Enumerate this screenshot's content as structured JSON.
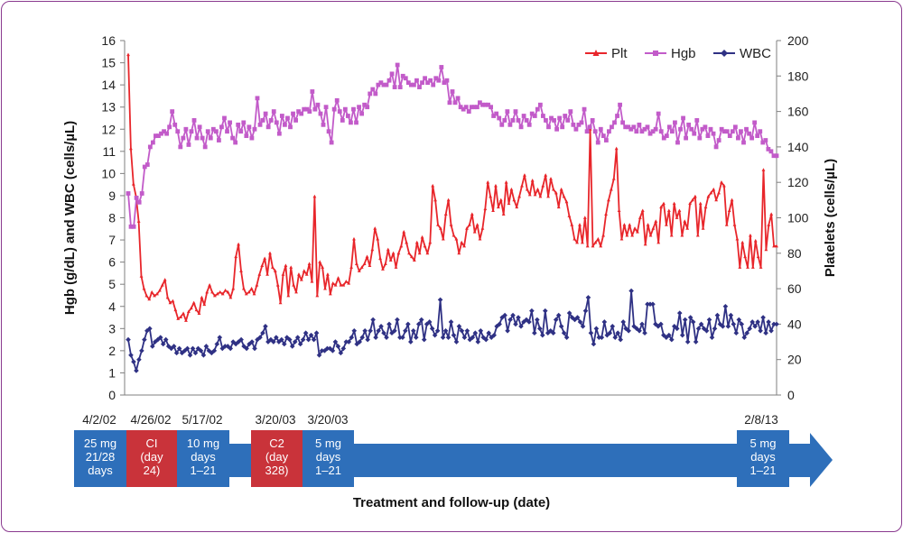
{
  "chart_data": {
    "type": "line",
    "xlabel": "Treatment and follow-up (date)",
    "ylabel_left": "Hgb (g/dL) and WBC (cells/µL)",
    "ylabel_right": "Platelets (cells/µL)",
    "ylim_left": [
      0,
      16
    ],
    "ylim_right": [
      0,
      200
    ],
    "yticks_left": [
      "0",
      "1",
      "2",
      "3",
      "4",
      "5",
      "6",
      "7",
      "8",
      "9",
      "10",
      "11",
      "12",
      "13",
      "14",
      "15",
      "16"
    ],
    "yticks_right": [
      "0",
      "20",
      "40",
      "60",
      "80",
      "100",
      "120",
      "140",
      "160",
      "180",
      "200"
    ],
    "legend": [
      "Plt",
      "Hgb",
      "WBC"
    ],
    "legend_position": "top-right",
    "grid": false,
    "colors": {
      "Plt": "#e8262b",
      "Hgb": "#c25bc9",
      "WBC": "#2f3184"
    },
    "series": [
      {
        "name": "Plt",
        "axis": "right",
        "values": [
          192,
          139,
          119,
          112,
          98,
          67,
          60,
          56,
          54,
          58,
          56,
          57,
          59,
          62,
          65,
          55,
          52,
          53,
          48,
          43,
          44,
          46,
          42,
          47,
          49,
          52,
          48,
          46,
          55,
          51,
          58,
          62,
          58,
          56,
          57,
          58,
          57,
          59,
          58,
          55,
          60,
          78,
          85,
          70,
          60,
          57,
          58,
          60,
          57,
          62,
          68,
          73,
          77,
          68,
          80,
          72,
          70,
          62,
          52,
          68,
          73,
          56,
          72,
          62,
          58,
          68,
          65,
          70,
          68,
          74,
          64,
          112,
          56,
          75,
          72,
          60,
          68,
          57,
          63,
          62,
          66,
          62,
          62,
          64,
          63,
          72,
          88,
          74,
          70,
          72,
          74,
          78,
          73,
          82,
          94,
          88,
          77,
          71,
          74,
          82,
          76,
          80,
          72,
          80,
          84,
          92,
          86,
          80,
          78,
          76,
          86,
          80,
          89,
          84,
          80,
          86,
          118,
          110,
          96,
          94,
          88,
          102,
          110,
          96,
          90,
          88,
          80,
          86,
          84,
          94,
          96,
          102,
          92,
          96,
          88,
          94,
          105,
          120,
          112,
          104,
          118,
          106,
          110,
          102,
          120,
          108,
          116,
          110,
          106,
          112,
          118,
          124,
          116,
          113,
          121,
          113,
          116,
          112,
          118,
          124,
          112,
          122,
          116,
          114,
          106,
          116,
          112,
          109,
          101,
          96,
          88,
          86,
          96,
          86,
          100,
          84,
          150,
          84,
          86,
          88,
          84,
          90,
          102,
          110,
          116,
          122,
          139,
          104,
          88,
          96,
          90,
          96,
          90,
          94,
          92,
          100,
          104,
          85,
          96,
          90,
          94,
          98,
          86,
          106,
          108,
          96,
          104,
          90,
          108,
          100,
          104,
          90,
          98,
          94,
          108,
          110,
          112,
          90,
          108,
          94,
          106,
          112,
          114,
          116,
          110,
          114,
          120,
          118,
          96,
          104,
          110,
          96,
          88,
          72,
          86,
          78,
          72,
          90,
          72,
          87,
          78,
          72,
          127,
          82,
          96,
          102,
          84,
          84
        ]
      },
      {
        "name": "Hgb",
        "axis": "left",
        "values": [
          9.1,
          7.6,
          7.6,
          8.9,
          8.7,
          9.1,
          10.3,
          10.4,
          11.2,
          11.4,
          11.7,
          11.7,
          11.8,
          11.9,
          11.8,
          12.1,
          12.8,
          12.2,
          11.9,
          11.2,
          11.6,
          12.0,
          11.3,
          11.9,
          12.4,
          11.6,
          12.1,
          11.6,
          11.2,
          11.9,
          11.6,
          12.0,
          11.9,
          11.5,
          12.1,
          12.5,
          11.9,
          12.3,
          11.6,
          11.4,
          12.2,
          11.9,
          12.3,
          11.7,
          12.1,
          11.6,
          12.0,
          13.4,
          12.2,
          12.4,
          12.7,
          12.1,
          12.4,
          12.8,
          12.3,
          11.8,
          12.6,
          12.2,
          12.5,
          12.1,
          12.7,
          12.4,
          12.8,
          12.7,
          12.9,
          12.9,
          12.8,
          13.7,
          12.9,
          13.1,
          12.7,
          12.2,
          13.0,
          11.9,
          11.4,
          12.9,
          13.3,
          12.8,
          12.4,
          12.9,
          12.6,
          12.3,
          12.9,
          12.3,
          13.0,
          12.7,
          13.1,
          13.0,
          13.6,
          13.8,
          13.6,
          14.0,
          14.1,
          14.0,
          14.0,
          14.2,
          14.5,
          13.9,
          14.9,
          13.9,
          14.4,
          14.3,
          14.1,
          14.0,
          14.0,
          14.2,
          13.9,
          14.1,
          14.3,
          14.1,
          14.2,
          14.0,
          14.3,
          14.2,
          14.8,
          14.1,
          14.2,
          13.2,
          13.7,
          13.2,
          13.4,
          13.0,
          12.9,
          13.0,
          12.8,
          13.0,
          13.0,
          13.0,
          13.2,
          13.1,
          13.1,
          13.1,
          13.0,
          12.6,
          12.7,
          12.5,
          12.2,
          12.4,
          12.8,
          12.2,
          12.4,
          12.8,
          12.4,
          12.1,
          12.6,
          12.4,
          12.2,
          12.7,
          12.6,
          12.9,
          13.1,
          12.6,
          12.4,
          12.1,
          12.5,
          12.4,
          12.0,
          12.5,
          12.1,
          12.6,
          12.4,
          12.8,
          12.2,
          12.0,
          12.2,
          12.3,
          12.9,
          11.9,
          12.1,
          12.4,
          11.9,
          11.4,
          12.0,
          11.7,
          11.5,
          11.9,
          12.1,
          12.3,
          12.6,
          13.1,
          12.3,
          12.1,
          12.1,
          12.0,
          12.1,
          11.9,
          12.2,
          11.9,
          12.0,
          12.1,
          11.8,
          11.9,
          12.0,
          12.7,
          11.9,
          11.6,
          11.7,
          12.1,
          11.9,
          12.3,
          11.4,
          12.0,
          12.5,
          11.6,
          12.2,
          12.0,
          11.8,
          12.4,
          11.6,
          12.0,
          12.1,
          11.7,
          12.0,
          11.8,
          11.2,
          11.5,
          12.0,
          11.9,
          11.9,
          11.7,
          11.9,
          12.1,
          11.6,
          11.9,
          11.4,
          12.0,
          11.8,
          11.6,
          12.3,
          11.7,
          11.9,
          11.4,
          11.5,
          11.1,
          11.0,
          10.8,
          10.8
        ]
      },
      {
        "name": "WBC",
        "axis": "left",
        "values": [
          2.5,
          1.8,
          1.5,
          1.1,
          1.6,
          2.0,
          2.5,
          2.9,
          3.0,
          2.2,
          2.4,
          2.5,
          2.6,
          2.3,
          2.5,
          2.2,
          2.1,
          2.2,
          1.9,
          2.1,
          1.9,
          2.0,
          2.1,
          1.8,
          2.1,
          1.9,
          2.1,
          2.0,
          1.8,
          2.2,
          2.0,
          1.9,
          2.0,
          2.3,
          2.6,
          2.1,
          2.2,
          2.2,
          2.1,
          2.4,
          2.3,
          2.4,
          2.5,
          2.2,
          2.1,
          2.3,
          2.4,
          2.1,
          2.5,
          2.6,
          2.8,
          3.1,
          2.4,
          2.5,
          2.4,
          2.6,
          2.4,
          2.5,
          2.3,
          2.6,
          2.5,
          2.2,
          2.4,
          2.6,
          2.3,
          2.5,
          2.8,
          2.5,
          2.7,
          2.5,
          2.8,
          1.8,
          2.0,
          2.0,
          2.1,
          2.1,
          2.0,
          2.4,
          2.2,
          1.9,
          2.1,
          2.4,
          2.4,
          2.6,
          2.9,
          2.3,
          2.4,
          2.6,
          2.9,
          2.5,
          2.9,
          3.4,
          2.6,
          2.9,
          3.1,
          2.8,
          2.6,
          3.2,
          2.8,
          2.9,
          3.4,
          2.6,
          2.6,
          2.9,
          3.2,
          2.4,
          2.9,
          2.6,
          3.2,
          3.4,
          2.5,
          3.2,
          3.3,
          3.0,
          2.7,
          2.9,
          4.3,
          2.6,
          2.9,
          2.6,
          3.3,
          2.7,
          2.4,
          3.1,
          2.9,
          2.6,
          2.9,
          2.5,
          2.6,
          2.8,
          2.4,
          2.9,
          2.6,
          2.5,
          2.8,
          2.6,
          2.7,
          3.1,
          3.2,
          3.5,
          3.6,
          2.9,
          3.4,
          3.6,
          3.2,
          3.5,
          3.1,
          3.3,
          3.4,
          3.3,
          3.8,
          2.8,
          3.4,
          3.0,
          2.7,
          3.8,
          2.8,
          2.9,
          2.8,
          3.4,
          3.6,
          3.1,
          2.8,
          2.6,
          3.7,
          3.5,
          3.4,
          3.5,
          3.3,
          3.1,
          3.8,
          4.4,
          2.8,
          2.3,
          3.0,
          2.6,
          2.6,
          3.3,
          2.7,
          2.8,
          3.1,
          2.6,
          2.8,
          2.5,
          3.3,
          3.0,
          2.9,
          4.7,
          3.1,
          3.0,
          2.9,
          3.2,
          2.8,
          4.1,
          4.1,
          4.1,
          3.2,
          3.1,
          3.2,
          2.7,
          2.6,
          2.7,
          2.5,
          3.1,
          3.0,
          3.7,
          2.7,
          3.4,
          2.4,
          3.5,
          3.3,
          2.4,
          3.0,
          3.2,
          3.0,
          2.9,
          3.4,
          2.6,
          3.0,
          3.6,
          3.2,
          3.1,
          4.0,
          3.1,
          3.6,
          3.2,
          2.8,
          3.4,
          3.2,
          2.6,
          2.8,
          3.0,
          3.3,
          3.1,
          3.3,
          2.9,
          3.5,
          2.8,
          3.3,
          2.9,
          3.2,
          3.2
        ]
      }
    ]
  },
  "timeline": {
    "dates": [
      "4/2/02",
      "4/26/02",
      "5/17/02",
      "3/20/03",
      "3/20/03",
      "2/8/13"
    ],
    "boxes": [
      {
        "lines": [
          "25 mg",
          "21/28",
          "days"
        ],
        "color": "#2e6fba"
      },
      {
        "lines": [
          "CI",
          "(day",
          "24)"
        ],
        "color": "#c9333a"
      },
      {
        "lines": [
          "10 mg",
          "days",
          "1–21"
        ],
        "color": "#2e6fba"
      },
      {
        "lines": [
          "C2",
          "(day",
          "328)"
        ],
        "color": "#c9333a"
      },
      {
        "lines": [
          "5 mg",
          "days",
          "1–21"
        ],
        "color": "#2e6fba"
      },
      {
        "lines": [
          "5 mg",
          "days",
          "1–21"
        ],
        "color": "#2e6fba"
      }
    ],
    "arrow_color": "#2e6fba"
  },
  "colors": {
    "frame_border": "#8a3a8f",
    "axis": "#7f7f7f"
  }
}
